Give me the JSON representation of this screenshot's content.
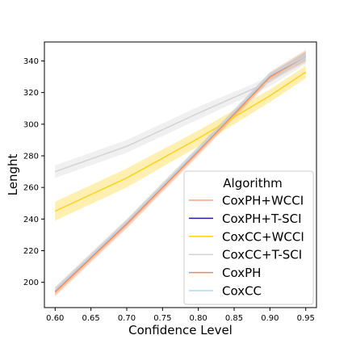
{
  "chart_data": {
    "type": "line",
    "title": "",
    "xlabel": "Confidence Level",
    "ylabel": "Lenght",
    "xlim": [
      0.585,
      0.965
    ],
    "ylim": [
      184,
      352
    ],
    "xticks": [
      0.6,
      0.65,
      0.7,
      0.75,
      0.8,
      0.85,
      0.9,
      0.95
    ],
    "xtick_labels": [
      "0.60",
      "0.65",
      "0.70",
      "0.75",
      "0.80",
      "0.85",
      "0.90",
      "0.95"
    ],
    "yticks": [
      200,
      220,
      240,
      260,
      280,
      300,
      320,
      340
    ],
    "grid": false,
    "legend_title": "Algorithm",
    "legend_position": "lower-right",
    "x": [
      0.6,
      0.7,
      0.8,
      0.9,
      0.95
    ],
    "series": [
      {
        "name": "CoxPH+WCCI",
        "color": "#f4a582",
        "values": [
          194,
          237,
          283,
          330,
          343
        ],
        "band": [
          3,
          3,
          3,
          3,
          4
        ]
      },
      {
        "name": "CoxPH+T-SCI",
        "color": "#1f1fb4",
        "values": [
          null,
          null,
          null,
          null,
          null
        ],
        "band": [
          0,
          0,
          0,
          0,
          0
        ]
      },
      {
        "name": "CoxCC+WCCI",
        "color": "#ffd21f",
        "values": [
          245,
          266,
          291,
          318,
          333
        ],
        "band": [
          6,
          6,
          5,
          4,
          4
        ]
      },
      {
        "name": "CoxCC+T-SCI",
        "color": "#d3d3d3",
        "values": [
          270,
          286,
          307,
          327,
          342
        ],
        "band": [
          4,
          4,
          4,
          3,
          4
        ]
      },
      {
        "name": "CoxPH",
        "color": "#ee8b55",
        "values": [
          194,
          237,
          283,
          330,
          343
        ],
        "band": [
          2,
          2,
          2,
          2,
          3
        ]
      },
      {
        "name": "CoxCC",
        "color": "#b6d7ef",
        "values": [
          195,
          238,
          284,
          331,
          343
        ],
        "band": [
          2,
          2,
          2,
          2,
          3
        ]
      }
    ]
  }
}
